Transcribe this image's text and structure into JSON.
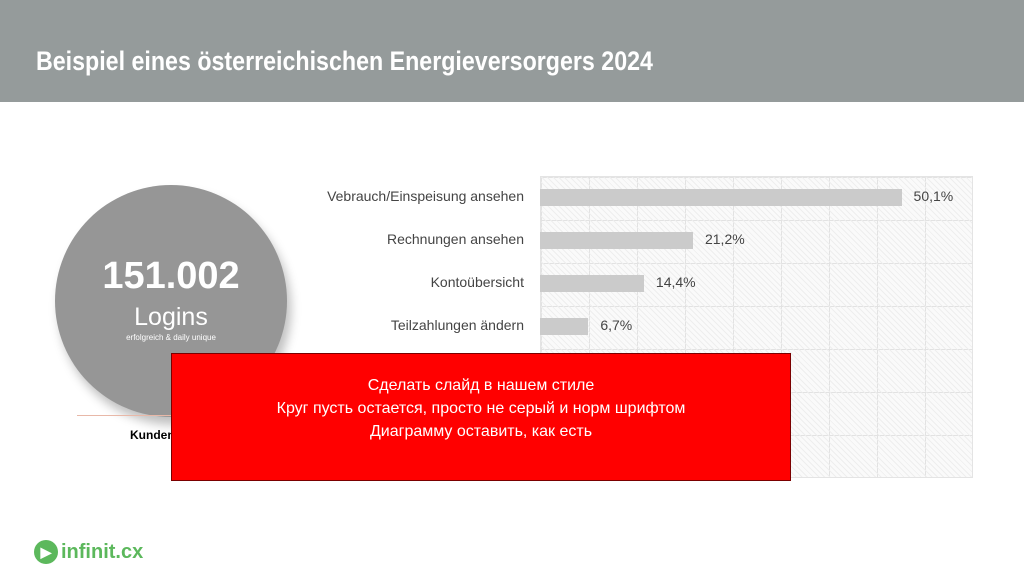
{
  "slide": {
    "title": "Beispiel eines österreichischen Energieversorgers 2024"
  },
  "kpi": {
    "value": "151.002",
    "label": "Logins",
    "sublabel": "erfolgreich & daily unique",
    "caption": "Kunden"
  },
  "chart_data": {
    "type": "bar",
    "orientation": "horizontal",
    "categories": [
      "Vebrauch/Einspeisung ansehen",
      "Rechnungen ansehen",
      "Kontoübersicht",
      "Teilzahlungen ändern"
    ],
    "values": [
      50.1,
      21.2,
      14.4,
      6.7
    ],
    "labels": [
      "50,1%",
      "21,2%",
      "14,4%",
      "6,7%"
    ],
    "unit": "%",
    "xlim": [
      0,
      60
    ],
    "grid": true,
    "bar_color": "#cbcbcb"
  },
  "note": {
    "lines": [
      "Сделать слайд в нашем стиле",
      "Круг пусть остается, просто не серый и норм шрифтом",
      "Диаграмму оставить, как есть"
    ],
    "color": "#ff0000"
  },
  "logo": {
    "text": "infinit.cx",
    "color": "#5cb85c"
  }
}
